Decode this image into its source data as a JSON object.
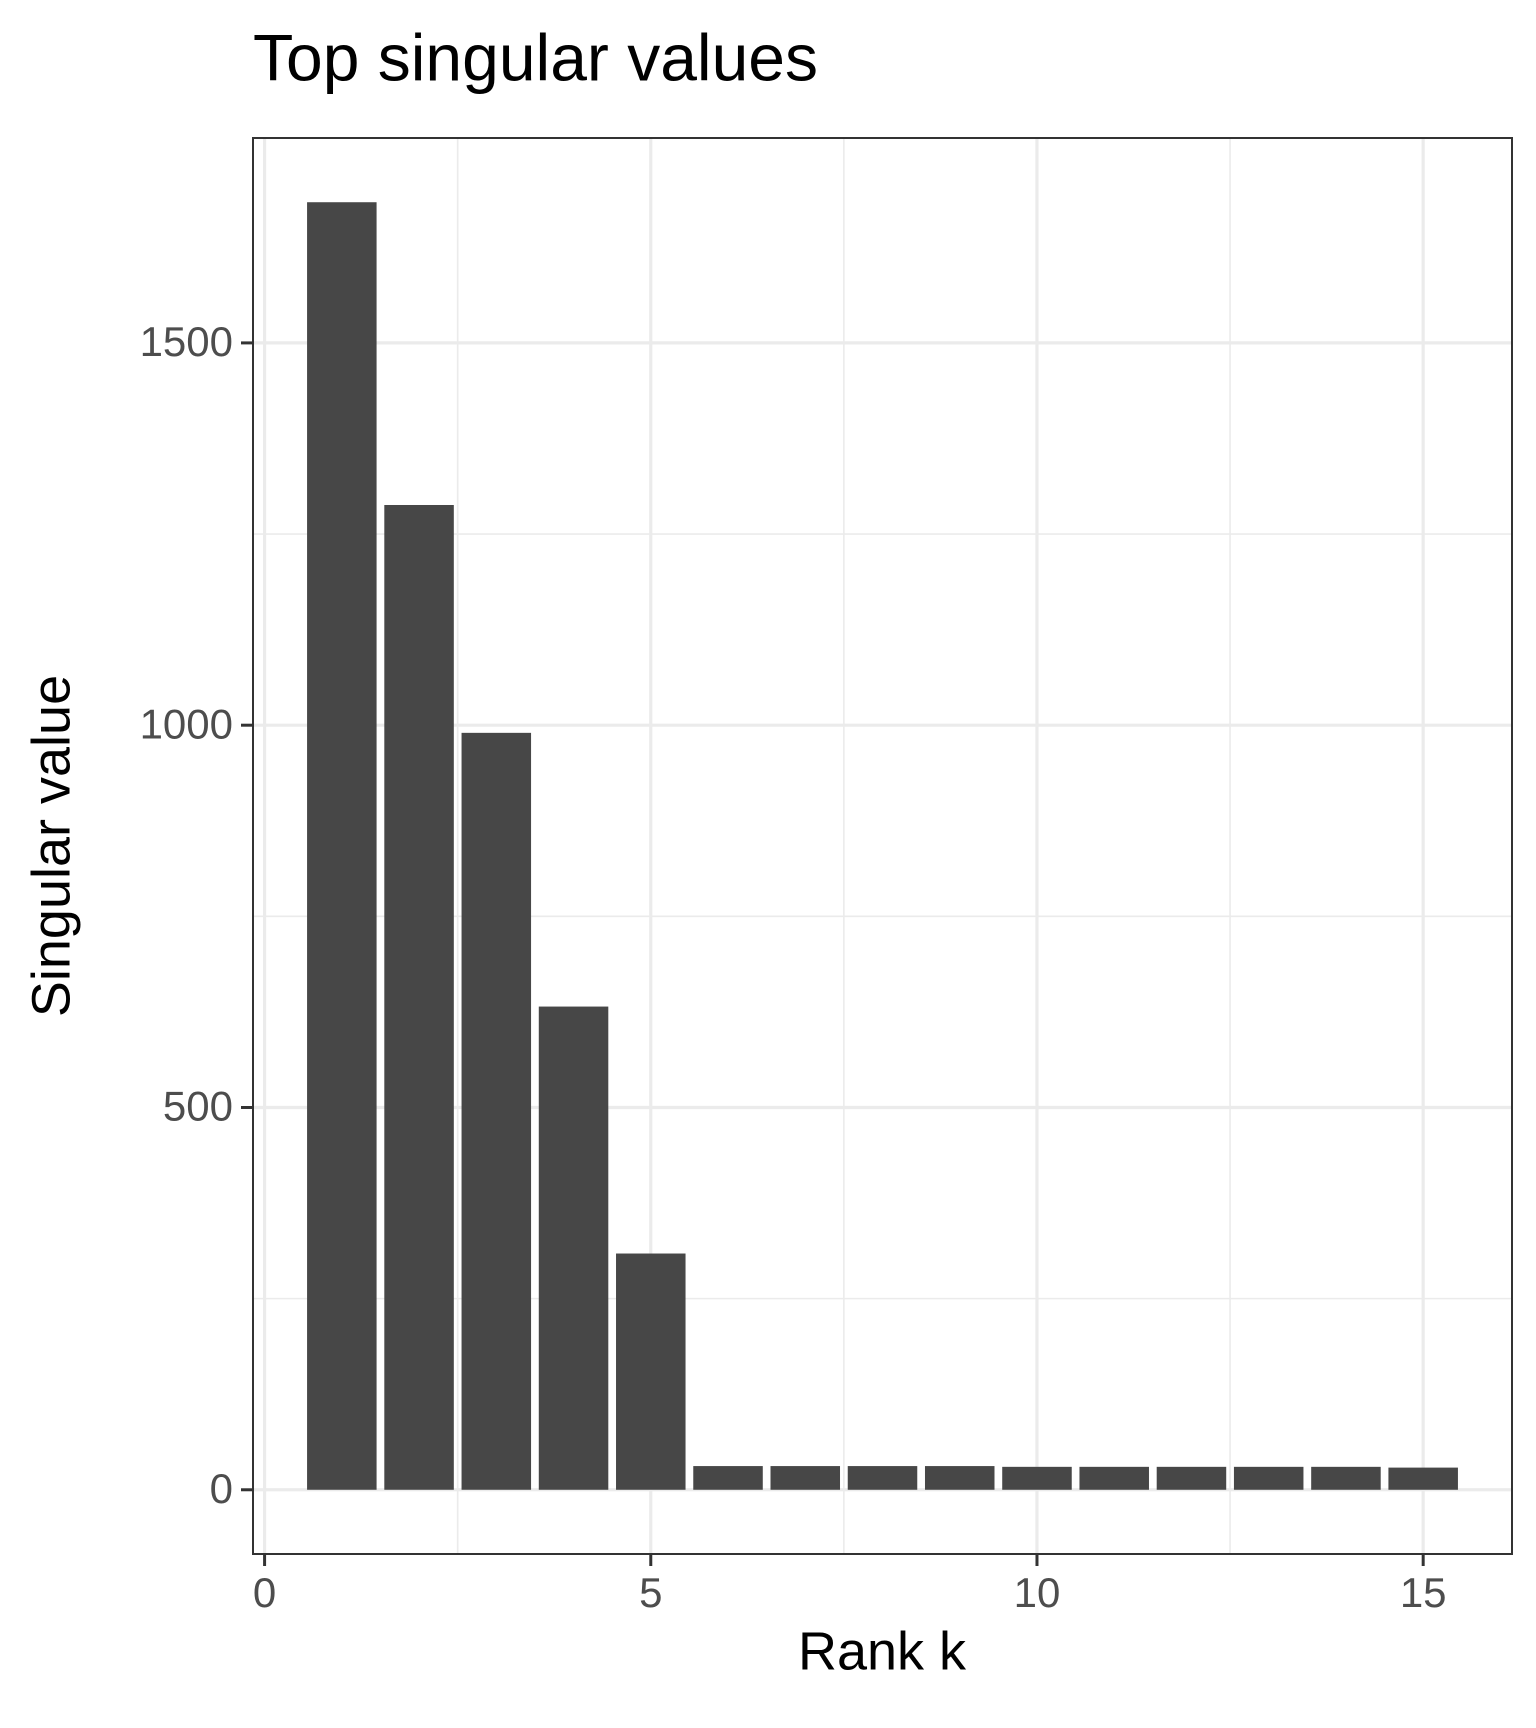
{
  "chart_data": {
    "type": "bar",
    "title": "Top singular values",
    "x_label": "Rank k",
    "y_label": "Singular value",
    "x": [
      1,
      2,
      3,
      4,
      5,
      6,
      7,
      8,
      9,
      10,
      11,
      12,
      13,
      14,
      15
    ],
    "values": [
      1684,
      1288,
      990,
      632,
      309,
      31,
      31,
      31,
      31,
      30,
      30,
      30,
      30,
      30,
      29
    ],
    "color": "#474747",
    "bar_width": 0.9,
    "xlim": [
      -0.15,
      16.15
    ],
    "xticks": [
      0,
      5,
      10,
      15
    ],
    "minor_xticks": [
      2.5,
      7.5,
      12.5
    ],
    "ylim": [
      -84,
      1768
    ],
    "yticks": [
      0,
      500,
      1000,
      1500
    ],
    "minor_yticks": [
      250,
      750,
      1250
    ],
    "grid": true
  }
}
